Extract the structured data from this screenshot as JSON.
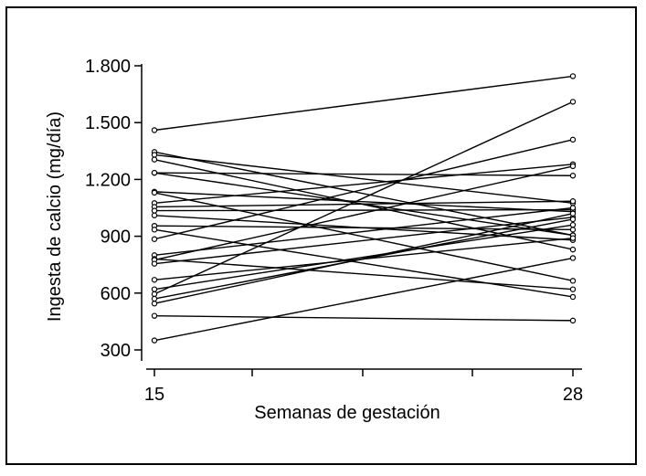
{
  "chart_data": {
    "type": "line",
    "title": "",
    "xlabel": "Semanas de gestación",
    "ylabel": "Ingesta de calcio (mg/día)",
    "x": [
      15,
      28
    ],
    "x_tick_labels": [
      "15",
      "28"
    ],
    "xlim": [
      15,
      28
    ],
    "y_ticks": [
      300,
      600,
      900,
      1200,
      1500,
      1800
    ],
    "y_tick_labels": [
      "300",
      "600",
      "900",
      "1.200",
      "1.500",
      "1.800"
    ],
    "ylim": [
      270,
      1870
    ],
    "grid": false,
    "legend": "none",
    "line_color": "#000000",
    "series": [
      {
        "values": [
          1460,
          1745
        ]
      },
      {
        "values": [
          1345,
          905
        ]
      },
      {
        "values": [
          1330,
          1075
        ]
      },
      {
        "values": [
          1305,
          830
        ]
      },
      {
        "values": [
          1235,
          1220
        ]
      },
      {
        "values": [
          1235,
          905
        ]
      },
      {
        "values": [
          1135,
          1030
        ]
      },
      {
        "values": [
          1130,
          665
        ]
      },
      {
        "values": [
          1075,
          1280
        ]
      },
      {
        "values": [
          1055,
          1085
        ]
      },
      {
        "values": [
          1035,
          1040
        ]
      },
      {
        "values": [
          1010,
          880
        ]
      },
      {
        "values": [
          955,
          935
        ]
      },
      {
        "values": [
          935,
          580
        ]
      },
      {
        "values": [
          885,
          1410
        ]
      },
      {
        "values": [
          800,
          1050
        ]
      },
      {
        "values": [
          780,
          620
        ]
      },
      {
        "values": [
          775,
          1270
        ]
      },
      {
        "values": [
          755,
          1000
        ]
      },
      {
        "values": [
          670,
          890
        ]
      },
      {
        "values": [
          620,
          960
        ]
      },
      {
        "values": [
          595,
          1610
        ]
      },
      {
        "values": [
          570,
          990
        ]
      },
      {
        "values": [
          545,
          1020
        ]
      },
      {
        "values": [
          480,
          455
        ]
      },
      {
        "values": [
          350,
          785
        ]
      }
    ]
  }
}
